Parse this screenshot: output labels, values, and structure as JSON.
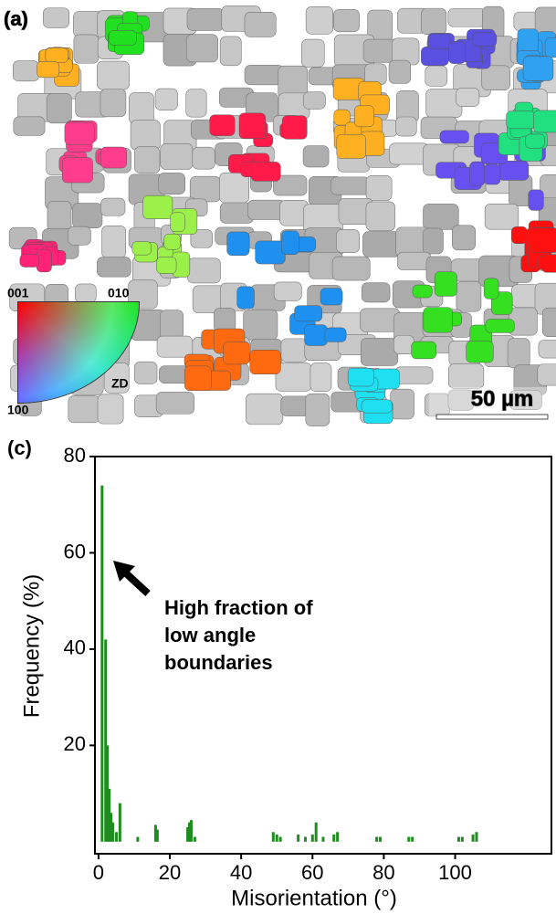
{
  "map": {
    "label": "(a)",
    "ipf": {
      "corner_001": "001",
      "corner_010": "010",
      "corner_100": "100",
      "axis": "ZD"
    },
    "scale_bar": "50 µm"
  },
  "chart_data": {
    "type": "bar",
    "panel_label": "(c)",
    "x_label": "Misorientation (°)",
    "y_label": "Frequency (%)",
    "annotation": [
      "High fraction of",
      "low angle",
      "boundaries"
    ],
    "x": [
      1,
      2,
      2.5,
      3,
      3.5,
      4,
      5,
      6,
      11,
      16,
      16.5,
      25,
      25.5,
      26,
      27,
      49,
      50,
      51,
      56,
      58,
      60,
      61,
      63,
      66,
      67,
      78,
      79,
      87,
      88,
      101,
      102,
      105,
      106
    ],
    "values": [
      74,
      42,
      20,
      11,
      6,
      4,
      2,
      8,
      1,
      3.5,
      2.5,
      3,
      4,
      4.5,
      1,
      2,
      1.5,
      1,
      1.5,
      1,
      1.5,
      4,
      1,
      1.5,
      2,
      1,
      1,
      1,
      1,
      1,
      1,
      1.5,
      2
    ],
    "color": "#1f8c1f",
    "xlim": [
      -1,
      127
    ],
    "xticks": [
      0,
      20,
      40,
      60,
      80,
      100
    ],
    "ylim": [
      -2.5,
      80
    ],
    "yticks": [
      20,
      40,
      60,
      80
    ]
  }
}
